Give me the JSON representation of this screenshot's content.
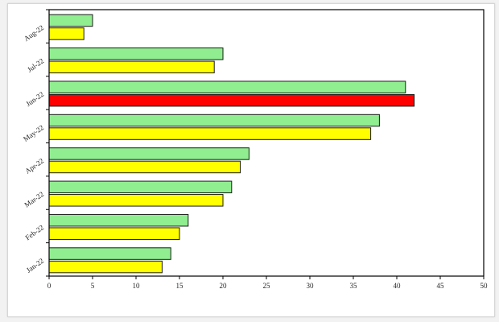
{
  "chart_data": {
    "type": "bar",
    "orientation": "horizontal",
    "categories": [
      "Jan-22",
      "Feb-22",
      "Mar-22",
      "Apr-22",
      "May-22",
      "Jun-22",
      "Jul-22",
      "Aug-22"
    ],
    "series": [
      {
        "values": [
          14,
          16,
          21,
          23,
          38,
          41,
          20,
          5
        ],
        "color": "#90ee90"
      },
      {
        "values": [
          13,
          15,
          20,
          22,
          37,
          42,
          19,
          4
        ],
        "color": "#ffff00",
        "highlight_color": "#ff0000",
        "highlight_category": "Jun-22"
      }
    ],
    "x_ticks": [
      0,
      5,
      10,
      15,
      20,
      25,
      30,
      35,
      40,
      45,
      50
    ],
    "xlim": [
      0,
      50
    ],
    "title": "",
    "xlabel": "",
    "ylabel": "",
    "grid": false,
    "legend": "none"
  }
}
